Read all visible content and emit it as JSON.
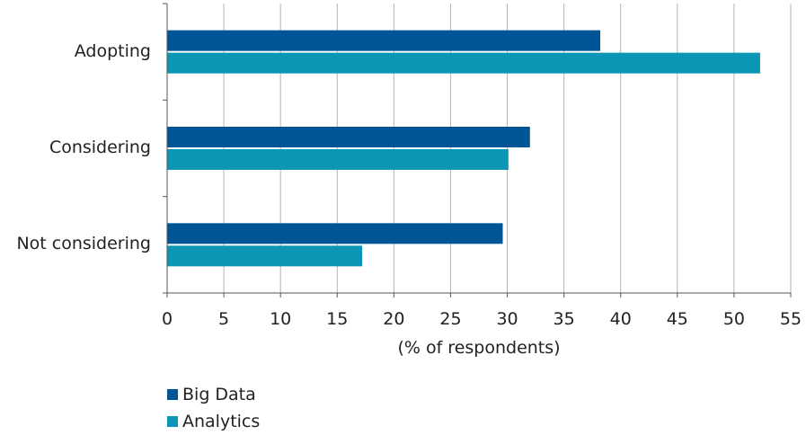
{
  "chart_data": {
    "type": "bar",
    "orientation": "horizontal",
    "categories": [
      "Adopting",
      "Considering",
      "Not considering"
    ],
    "series": [
      {
        "name": "Big Data",
        "values": [
          38.2,
          32.0,
          29.6
        ],
        "color": "#005596"
      },
      {
        "name": "Analytics",
        "values": [
          52.3,
          30.1,
          17.2
        ],
        "color": "#0a96b4"
      }
    ],
    "xlabel": "(% of respondents)",
    "ylabel": "",
    "xlim": [
      0,
      55
    ],
    "xticks": [
      "0",
      "5",
      "10",
      "15",
      "20",
      "25",
      "30",
      "35",
      "40",
      "45",
      "50",
      "55"
    ],
    "grid": "vertical",
    "legend_position": "bottom-left"
  }
}
